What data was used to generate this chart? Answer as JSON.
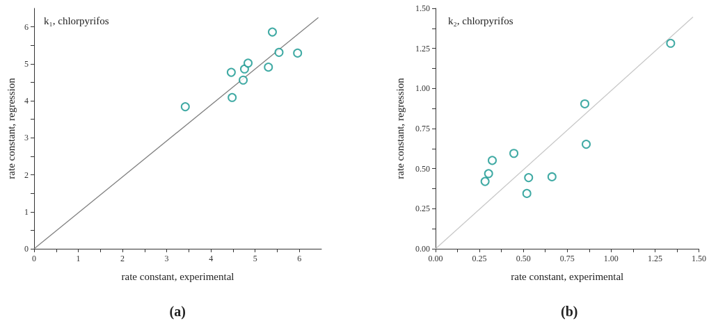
{
  "chart_data": [
    {
      "type": "scatter",
      "xlabel": "rate constant, experimental",
      "ylabel": "rate constant, regression",
      "annotations": [
        "k₁, chlorpyrifos",
        "(a)"
      ],
      "xlim": [
        0,
        6.5
      ],
      "ylim": [
        0,
        6.5
      ],
      "xticks": [
        0,
        {
          "value": 0.5,
          "label": null
        },
        1,
        {
          "value": 1.5,
          "label": null
        },
        2,
        {
          "value": 2.5,
          "label": null
        },
        3,
        {
          "value": 3.5,
          "label": null
        },
        4,
        {
          "value": 4.5,
          "label": null
        },
        5,
        {
          "value": 5.5,
          "label": null
        },
        6
      ],
      "yticks": [
        0,
        {
          "value": 0.5,
          "label": null
        },
        1,
        {
          "value": 1.5,
          "label": null
        },
        2,
        {
          "value": 2.5,
          "label": null
        },
        3,
        {
          "value": 3.5,
          "label": null
        },
        4,
        {
          "value": 4.5,
          "label": null
        },
        5,
        {
          "value": 5.5,
          "label": null
        },
        6
      ],
      "grid": false,
      "marker": "circle",
      "series": [
        {
          "color": "#10958d",
          "x": [
            3.42,
            4.46,
            4.48,
            4.73,
            4.76,
            4.84,
            5.3,
            5.39,
            5.54,
            5.96
          ],
          "values": [
            3.84,
            4.77,
            4.09,
            4.56,
            4.86,
            5.02,
            4.91,
            5.86,
            5.31,
            5.29
          ]
        },
        {
          "type": "line",
          "marker": "none",
          "color": "#808080",
          "x": [
            0,
            6.43
          ],
          "values": [
            0,
            6.25
          ]
        }
      ]
    },
    {
      "type": "scatter",
      "xlabel": "rate constant, experimental",
      "ylabel": "rate constant, regression",
      "annotations": [
        "k₂, chlorpyrifos",
        "(b)"
      ],
      "xlim": [
        0,
        1.5
      ],
      "ylim": [
        0,
        1.5
      ],
      "xticks": [
        {
          "value": 0,
          "label": "0.00"
        },
        {
          "value": 0.125,
          "label": null
        },
        {
          "value": 0.25,
          "label": "0.25"
        },
        {
          "value": 0.375,
          "label": null
        },
        {
          "value": 0.5,
          "label": "0.50"
        },
        {
          "value": 0.625,
          "label": null
        },
        {
          "value": 0.75,
          "label": "0.75"
        },
        {
          "value": 0.875,
          "label": null
        },
        {
          "value": 1,
          "label": "1.00"
        },
        {
          "value": 1.125,
          "label": null
        },
        {
          "value": 1.25,
          "label": "1.25"
        },
        {
          "value": 1.375,
          "label": null
        },
        {
          "value": 1.5,
          "label": "1.50"
        }
      ],
      "yticks": [
        {
          "value": 0,
          "label": "0.00"
        },
        {
          "value": 0.125,
          "label": null
        },
        {
          "value": 0.25,
          "label": "0.25"
        },
        {
          "value": 0.375,
          "label": null
        },
        {
          "value": 0.5,
          "label": "0.50"
        },
        {
          "value": 0.625,
          "label": null
        },
        {
          "value": 0.75,
          "label": "0.75"
        },
        {
          "value": 0.875,
          "label": null
        },
        {
          "value": 1,
          "label": "1.00"
        },
        {
          "value": 1.125,
          "label": null
        },
        {
          "value": 1.25,
          "label": "1.25"
        },
        {
          "value": 1.375,
          "label": null
        },
        {
          "value": 1.5,
          "label": "1.50"
        }
      ],
      "grid": false,
      "marker": "circle",
      "series": [
        {
          "color": "#10958d",
          "x": [
            0.282,
            0.302,
            0.323,
            0.446,
            0.52,
            0.53,
            0.663,
            0.85,
            0.858,
            1.339
          ],
          "values": [
            0.42,
            0.469,
            0.551,
            0.595,
            0.345,
            0.444,
            0.449,
            0.904,
            0.652,
            1.282
          ]
        },
        {
          "type": "line",
          "marker": "none",
          "color": "#c8c8c8",
          "x": [
            0,
            1.466
          ],
          "values": [
            0,
            1.446
          ]
        }
      ]
    }
  ]
}
